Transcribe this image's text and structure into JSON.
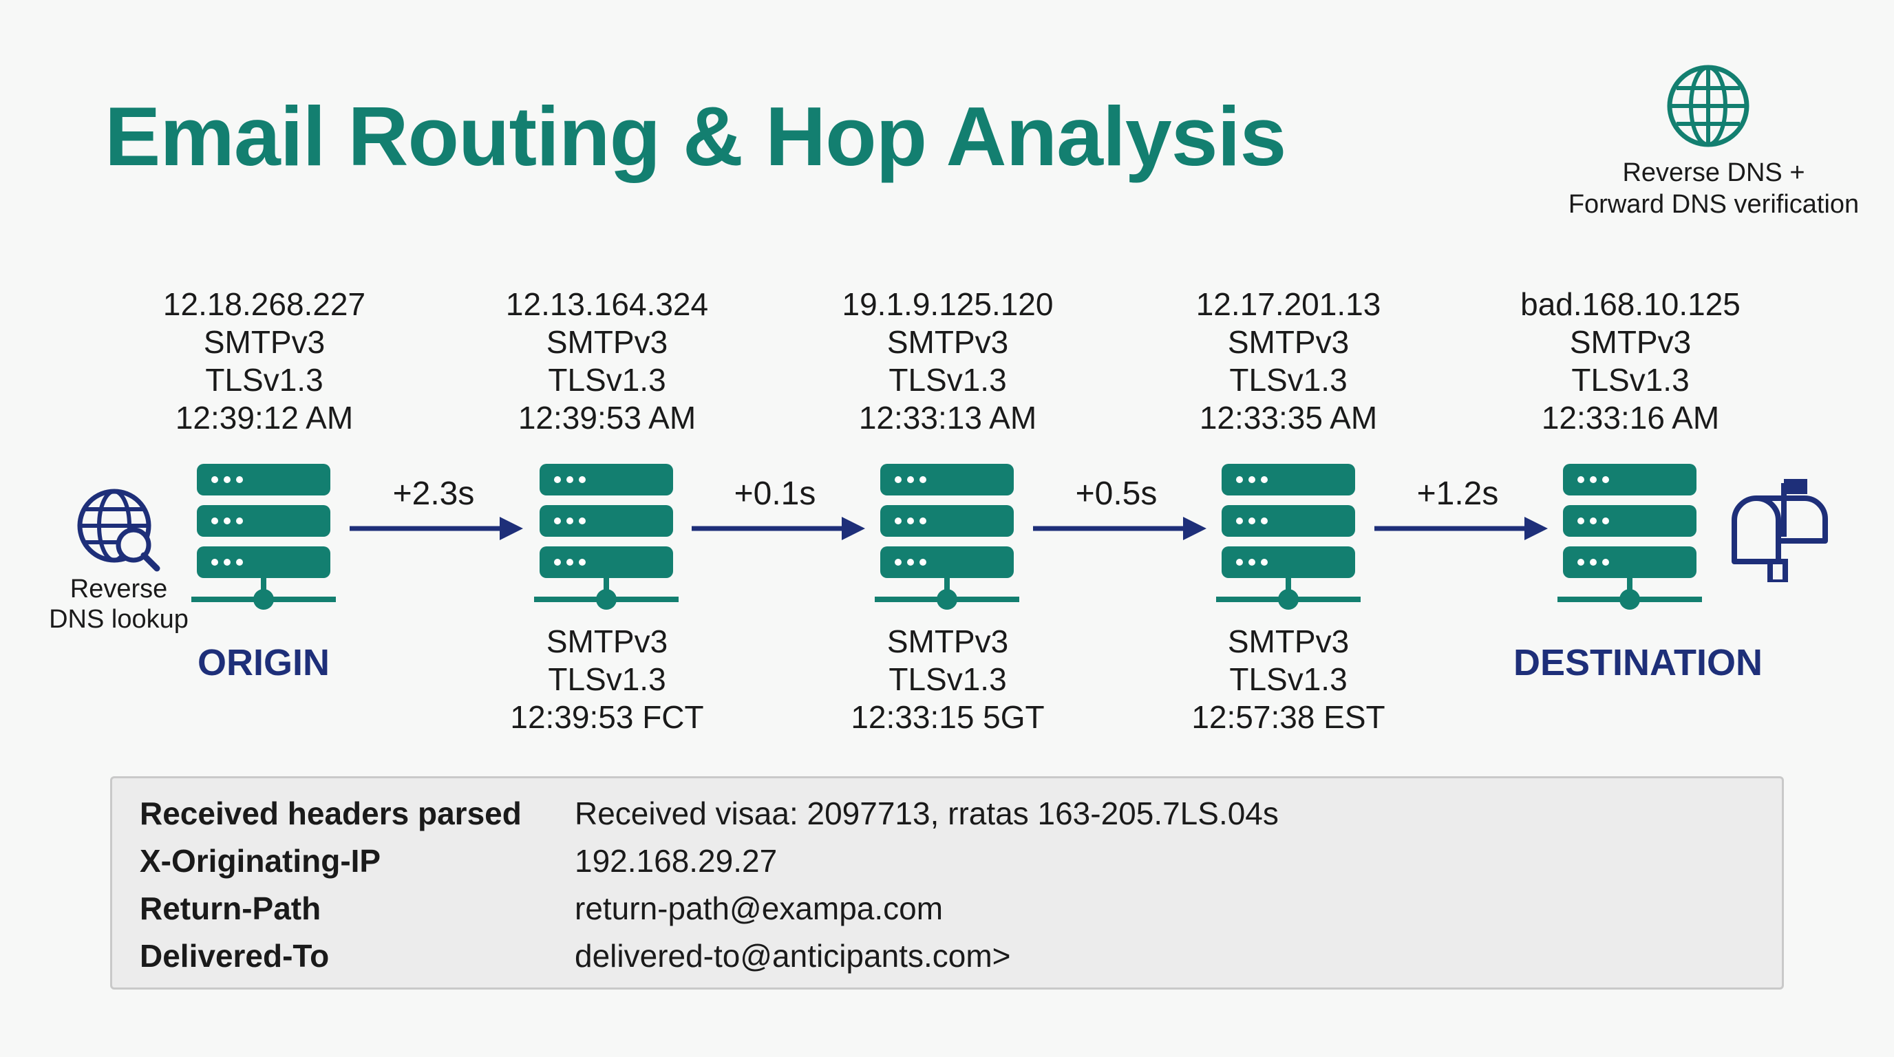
{
  "title": "Email Routing & Hop Analysis",
  "dns_verification": {
    "line1": "Reverse DNS +",
    "line2": "Forward DNS verification"
  },
  "reverse_lookup": {
    "line1": "Reverse",
    "line2": "DNS lookup"
  },
  "hops": [
    {
      "top": [
        "12.18.268.227",
        "SMTPv3",
        "TLSv1.3",
        "12:39:12 AM"
      ],
      "bottom": [],
      "label": "ORIGIN"
    },
    {
      "top": [
        "12.13.164.324",
        "SMTPv3",
        "TLSv1.3",
        "12:39:53 AM"
      ],
      "bottom": [
        "SMTPv3",
        "TLSv1.3",
        "12:39:53 FCT"
      ],
      "label": ""
    },
    {
      "top": [
        "19.1.9.125.120",
        "SMTPv3",
        "TLSv1.3",
        "12:33:13 AM"
      ],
      "bottom": [
        "SMTPv3",
        "TLSv1.3",
        "12:33:15 5GT"
      ],
      "label": ""
    },
    {
      "top": [
        "12.17.201.13",
        "SMTPv3",
        "TLSv1.3",
        "12:33:35 AM"
      ],
      "bottom": [
        "SMTPv3",
        "TLSv1.3",
        "12:57:38 EST"
      ],
      "label": ""
    },
    {
      "top": [
        "bad.168.10.125",
        "SMTPv3",
        "TLSv1.3",
        "12:33:16 AM"
      ],
      "bottom": [],
      "label": "DESTINATION"
    }
  ],
  "delays": [
    "+2.3s",
    "+0.1s",
    "+0.5s",
    "+1.2s"
  ],
  "headers": [
    {
      "key": "Received headers parsed",
      "value": "Received visaa: 2097713, rratas 163-205.7LS.04s"
    },
    {
      "key": "X-Originating-IP",
      "value": "192.168.29.27"
    },
    {
      "key": "Return-Path",
      "value": "return-path@exampa.com"
    },
    {
      "key": "Delivered-To",
      "value": "delivered-to@anticipants.com>"
    }
  ],
  "colors": {
    "teal": "#137f70",
    "navy": "#1e2f79"
  },
  "icons": {
    "globe": "globe-icon",
    "reverse_lookup": "globe-search-icon",
    "server": "server-icon",
    "mailbox": "mailbox-icon",
    "arrow": "arrow-right-icon"
  }
}
